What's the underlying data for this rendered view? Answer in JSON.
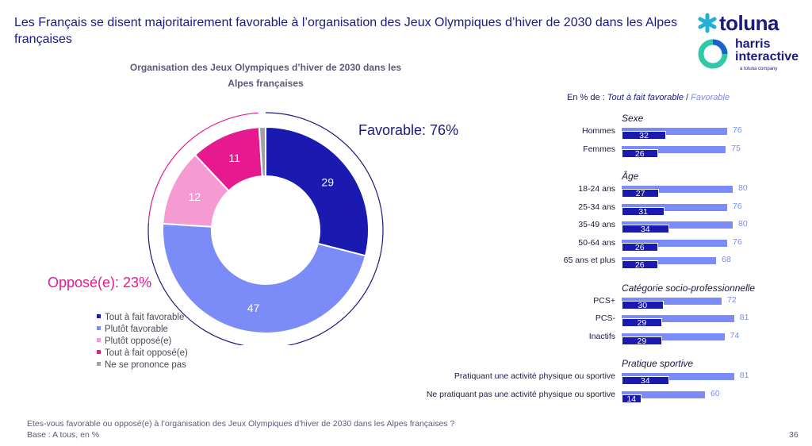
{
  "slide": {
    "title": "Les Français se disent majoritairement favorable à l’organisation des Jeux Olympiques d’hiver de 2030 dans les Alpes françaises",
    "question": "Etes-vous favorable ou opposé(e) à l’organisation des Jeux Olympiques d’hiver de 2030 dans les Alpes françaises ?",
    "base": "Base : A tous, en %",
    "page_number": "36"
  },
  "logo": {
    "line1": "toluna",
    "line2": "harris",
    "line3": "interactive",
    "line4": "a toluna company"
  },
  "colors": {
    "tout_a_fait_favorable": "#1a1ab0",
    "plutot_favorable": "#7b8cf8",
    "plutot_oppose": "#f59ad2",
    "tout_a_fait_oppose": "#e6198f",
    "nspp": "#a0a0a8",
    "accent_navy": "#1a1a80"
  },
  "chart_data": [
    {
      "type": "pie",
      "title": "Organisation des Jeux Olympiques d’hiver de 2030 dans les Alpes françaises",
      "unit": "%",
      "slices": [
        {
          "label": "Tout à fait favorable",
          "value": 29
        },
        {
          "label": "Plutôt favorable",
          "value": 47
        },
        {
          "label": "Plutôt opposé(e)",
          "value": 12
        },
        {
          "label": "Tout à fait opposé(e)",
          "value": 11
        },
        {
          "label": "Ne se prononce pas",
          "value": 1
        }
      ],
      "groups": [
        {
          "label": "Favorable: 76%",
          "value": 76
        },
        {
          "label": "Opposé(e): 23%",
          "value": 23
        }
      ],
      "legend": "bottom-left"
    },
    {
      "type": "bar",
      "subtitle_prefix": "En % de : ",
      "subtitle_series1": "Tout à fait favorable",
      "subtitle_sep": " / ",
      "subtitle_series2": "Favorable",
      "xlim": [
        0,
        100
      ],
      "series": [
        {
          "name": "Tout à fait favorable"
        },
        {
          "name": "Favorable"
        }
      ],
      "sections": [
        {
          "title": "Sexe",
          "rows": [
            {
              "label": "Hommes",
              "tout_a_fait": 32,
              "favorable": 76
            },
            {
              "label": "Femmes",
              "tout_a_fait": 26,
              "favorable": 75
            }
          ]
        },
        {
          "title": "Âge",
          "rows": [
            {
              "label": "18-24 ans",
              "tout_a_fait": 27,
              "favorable": 80
            },
            {
              "label": "25-34 ans",
              "tout_a_fait": 31,
              "favorable": 76
            },
            {
              "label": "35-49 ans",
              "tout_a_fait": 34,
              "favorable": 80
            },
            {
              "label": "50-64 ans",
              "tout_a_fait": 26,
              "favorable": 76
            },
            {
              "label": "65 ans et plus",
              "tout_a_fait": 26,
              "favorable": 68
            }
          ]
        },
        {
          "title": "Catégorie socio-professionnelle",
          "rows": [
            {
              "label": "PCS+",
              "tout_a_fait": 30,
              "favorable": 72
            },
            {
              "label": "PCS-",
              "tout_a_fait": 29,
              "favorable": 81
            },
            {
              "label": "Inactifs",
              "tout_a_fait": 29,
              "favorable": 74
            }
          ]
        },
        {
          "title": "Pratique sportive",
          "rows": [
            {
              "label": "Pratiquant une activité physique ou sportive",
              "tout_a_fait": 34,
              "favorable": 81
            },
            {
              "label": "Ne pratiquant pas une activité physique ou sportive",
              "tout_a_fait": 14,
              "favorable": 60
            }
          ]
        }
      ]
    }
  ]
}
